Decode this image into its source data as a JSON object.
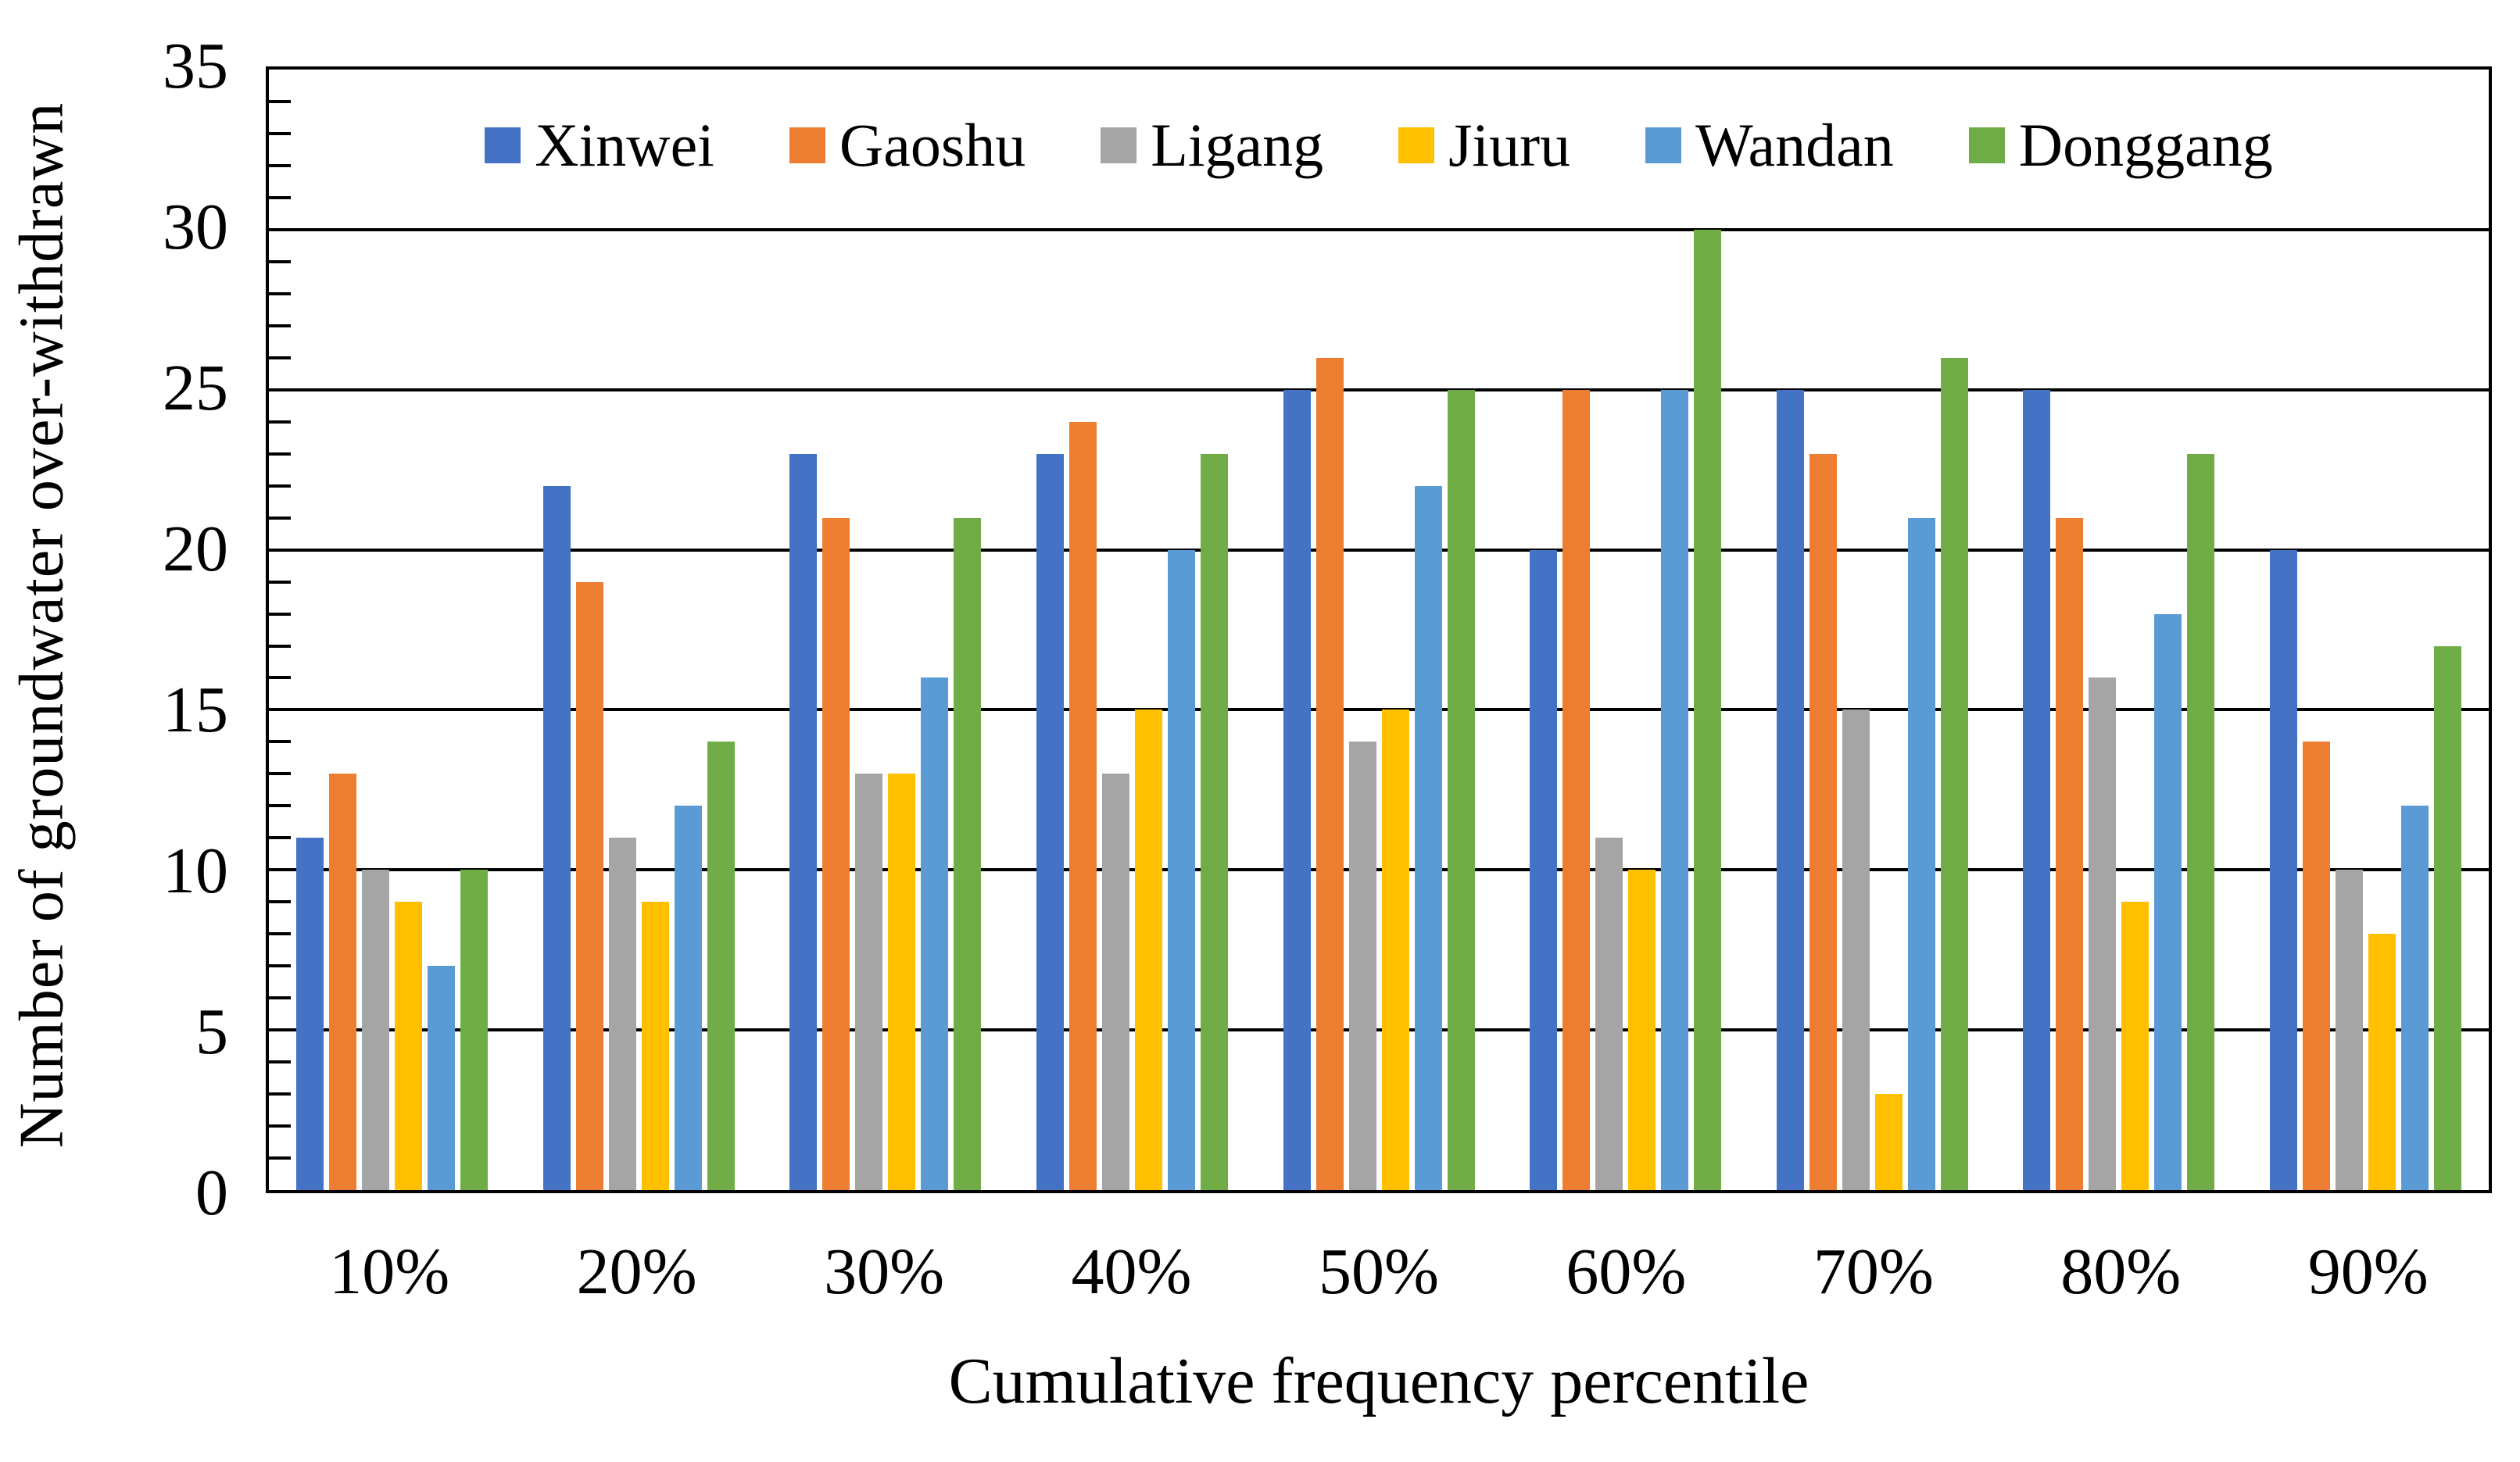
{
  "chart_data": {
    "type": "bar",
    "title": "",
    "xlabel": "Cumulative frequency percentile",
    "ylabel": "Number of groundwater over-withdrawn",
    "categories": [
      "10%",
      "20%",
      "30%",
      "40%",
      "50%",
      "60%",
      "70%",
      "80%",
      "90%"
    ],
    "series": [
      {
        "name": "Xinwei",
        "color": "#4472C4",
        "values": [
          11,
          22,
          23,
          23,
          25,
          20,
          25,
          25,
          20
        ]
      },
      {
        "name": "Gaoshu",
        "color": "#ED7D31",
        "values": [
          13,
          19,
          21,
          24,
          26,
          25,
          23,
          21,
          14
        ]
      },
      {
        "name": "Ligang",
        "color": "#A5A5A5",
        "values": [
          10,
          11,
          13,
          13,
          14,
          11,
          15,
          16,
          10
        ]
      },
      {
        "name": "Jiuru",
        "color": "#FFC000",
        "values": [
          9,
          9,
          13,
          15,
          15,
          10,
          3,
          9,
          8
        ]
      },
      {
        "name": "Wandan",
        "color": "#5B9BD5",
        "values": [
          7,
          12,
          16,
          20,
          22,
          25,
          21,
          18,
          12
        ]
      },
      {
        "name": "Donggang",
        "color": "#70AD47",
        "values": [
          10,
          14,
          21,
          23,
          25,
          30,
          26,
          23,
          17
        ]
      }
    ],
    "y_axis": {
      "min": 0,
      "max": 35,
      "major_step": 5,
      "minor_step": 1,
      "tick_labels": [
        "0",
        "5",
        "10",
        "15",
        "20",
        "25",
        "30",
        "35"
      ]
    },
    "grid": "horizontal-major-on",
    "legend_position": "top-inside-single-row",
    "plot_border_color": "#000000",
    "background_color": "#FFFFFF"
  }
}
